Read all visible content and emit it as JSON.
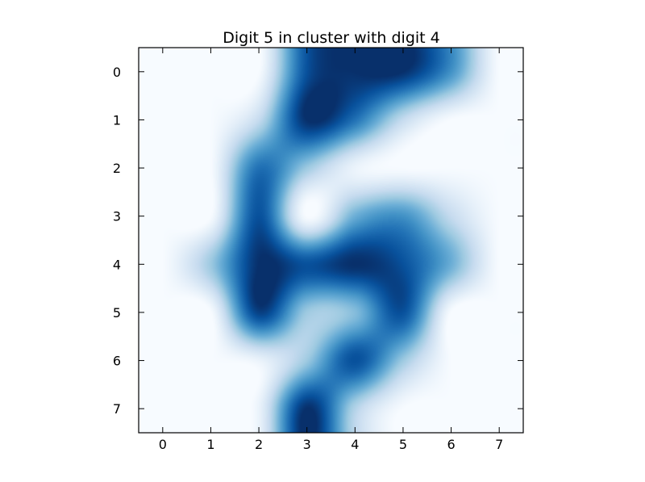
{
  "chart_data": {
    "type": "heatmap",
    "title": "Digit 5 in cluster with digit 4",
    "xlabel": "",
    "ylabel": "",
    "colormap": "Blues",
    "interpolation": "bicubic",
    "x": [
      0,
      1,
      2,
      3,
      4,
      5,
      6,
      7
    ],
    "y": [
      0,
      1,
      2,
      3,
      4,
      5,
      6,
      7
    ],
    "xlim": [
      -0.5,
      7.5
    ],
    "ylim": [
      7.5,
      -0.5
    ],
    "x_tick_labels": [
      "0",
      "1",
      "2",
      "3",
      "4",
      "5",
      "6",
      "7"
    ],
    "y_tick_labels": [
      "0",
      "1",
      "2",
      "3",
      "4",
      "5",
      "6",
      "7"
    ],
    "values": [
      [
        0,
        0,
        0,
        14,
        16,
        16,
        10,
        0
      ],
      [
        0,
        0,
        4,
        16,
        12,
        4,
        0,
        0
      ],
      [
        0,
        0,
        12,
        6,
        1,
        0,
        0,
        0
      ],
      [
        0,
        0,
        14,
        0,
        8,
        10,
        4,
        0
      ],
      [
        0,
        6,
        16,
        14,
        16,
        14,
        8,
        0
      ],
      [
        0,
        0,
        15,
        6,
        7,
        14,
        0,
        0
      ],
      [
        0,
        0,
        1,
        6,
        14,
        6,
        0,
        0
      ],
      [
        0,
        0,
        1,
        16,
        5,
        0,
        0,
        0
      ]
    ],
    "vmin": 0,
    "vmax": 16,
    "grid": false,
    "legend": "none"
  }
}
